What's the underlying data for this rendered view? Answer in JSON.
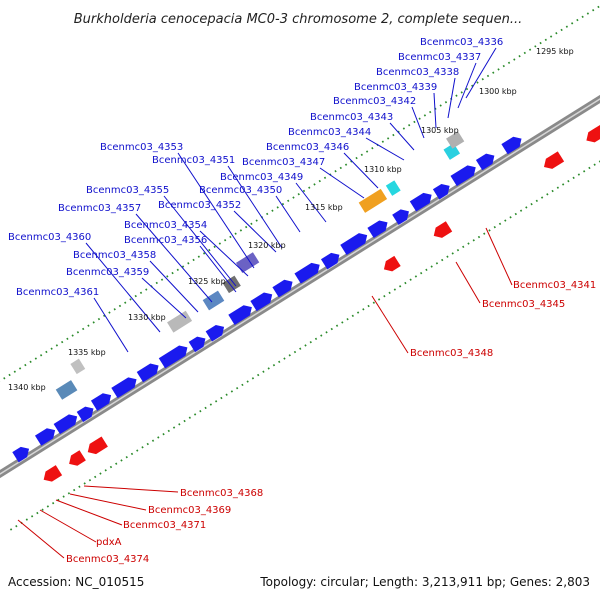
{
  "title": "Burkholderia cenocepacia MC0-3 chromosome 2, complete sequen...",
  "accession": "Accession: NC_010515",
  "summary": "Topology: circular; Length: 3,213,911 bp; Genes: 2,803",
  "colors": {
    "forward": "#1a1aee",
    "reverse": "#ee1111",
    "label_forward": "#1010cc",
    "label_reverse": "#cc0000",
    "backbone": "#8a8a8a",
    "ticks": "#2a8a2a"
  },
  "kbp_labels": [
    "1295 kbp",
    "1300 kbp",
    "1305 kbp",
    "1310 kbp",
    "1315 kbp",
    "1320 kbp",
    "1325 kbp",
    "1330 kbp",
    "1335 kbp",
    "1340 kbp"
  ],
  "forward_labels": [
    "Bcenmc03_4336",
    "Bcenmc03_4337",
    "Bcenmc03_4338",
    "Bcenmc03_4339",
    "Bcenmc03_4342",
    "Bcenmc03_4343",
    "Bcenmc03_4344",
    "Bcenmc03_4346",
    "Bcenmc03_4347",
    "Bcenmc03_4349",
    "Bcenmc03_4350",
    "Bcenmc03_4351",
    "Bcenmc03_4352",
    "Bcenmc03_4353",
    "Bcenmc03_4354",
    "Bcenmc03_4355",
    "Bcenmc03_4356",
    "Bcenmc03_4357",
    "Bcenmc03_4358",
    "Bcenmc03_4359",
    "Bcenmc03_4360",
    "Bcenmc03_4361"
  ],
  "reverse_labels": [
    "Bcenmc03_4341",
    "Bcenmc03_4345",
    "Bcenmc03_4348",
    "Bcenmc03_4368",
    "Bcenmc03_4369",
    "Bcenmc03_4371",
    "pdxA",
    "Bcenmc03_4374"
  ]
}
